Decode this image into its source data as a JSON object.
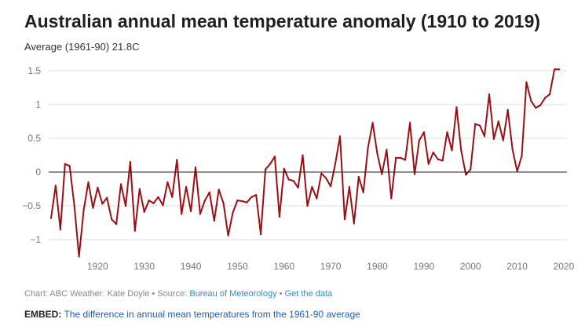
{
  "header": {
    "title": "Australian annual mean temperature anomaly (1910 to 2019)",
    "subtitle": "Average (1961-90) 21.8C"
  },
  "footer": {
    "credit": "Chart: ABC Weather: Kate Doyle",
    "separator1": " • Source: ",
    "source_link": "Bureau of Meteorology",
    "separator2": " • ",
    "data_link": "Get the data"
  },
  "embed": {
    "label": "EMBED:",
    "text": "The difference in annual mean temperatures from the 1961-90 average"
  },
  "colors": {
    "line": "#9b0f14",
    "grid": "#dcdcdc",
    "zero": "#222222",
    "tick": "#777777"
  },
  "chart_data": {
    "type": "line",
    "title": "Australian annual mean temperature anomaly (1910 to 2019)",
    "subtitle": "Average (1961-90) 21.8C",
    "xlabel": "",
    "ylabel": "",
    "xlim": [
      1910,
      2019
    ],
    "ylim": [
      -1.25,
      1.55
    ],
    "xticks": [
      1920,
      1930,
      1940,
      1950,
      1960,
      1970,
      1980,
      1990,
      2000,
      2010,
      2020
    ],
    "yticks": [
      -1,
      -0.5,
      0,
      0.5,
      1,
      1.5
    ],
    "ytick_labels": [
      "−1",
      "−0.5",
      "0",
      "0.5",
      "1",
      "1.5"
    ],
    "grid": true,
    "series": [
      {
        "name": "Annual mean temperature anomaly",
        "x": [
          1910,
          1911,
          1912,
          1913,
          1914,
          1915,
          1916,
          1917,
          1918,
          1919,
          1920,
          1921,
          1922,
          1923,
          1924,
          1925,
          1926,
          1927,
          1928,
          1929,
          1930,
          1931,
          1932,
          1933,
          1934,
          1935,
          1936,
          1937,
          1938,
          1939,
          1940,
          1941,
          1942,
          1943,
          1944,
          1945,
          1946,
          1947,
          1948,
          1949,
          1950,
          1951,
          1952,
          1953,
          1954,
          1955,
          1956,
          1957,
          1958,
          1959,
          1960,
          1961,
          1962,
          1963,
          1964,
          1965,
          1966,
          1967,
          1968,
          1969,
          1970,
          1971,
          1972,
          1973,
          1974,
          1975,
          1976,
          1977,
          1978,
          1979,
          1980,
          1981,
          1982,
          1983,
          1984,
          1985,
          1986,
          1987,
          1988,
          1989,
          1990,
          1991,
          1992,
          1993,
          1994,
          1995,
          1996,
          1997,
          1998,
          1999,
          2000,
          2001,
          2002,
          2003,
          2004,
          2005,
          2006,
          2007,
          2008,
          2009,
          2010,
          2011,
          2012,
          2013,
          2014,
          2015,
          2016,
          2017,
          2018,
          2019
        ],
        "values": [
          -0.68,
          -0.2,
          -0.85,
          0.12,
          0.09,
          -0.5,
          -1.25,
          -0.56,
          -0.15,
          -0.53,
          -0.23,
          -0.47,
          -0.38,
          -0.7,
          -0.77,
          -0.18,
          -0.5,
          0.15,
          -0.87,
          -0.25,
          -0.59,
          -0.42,
          -0.46,
          -0.37,
          -0.49,
          -0.15,
          -0.37,
          0.18,
          -0.62,
          -0.22,
          -0.58,
          0.07,
          -0.62,
          -0.42,
          -0.3,
          -0.72,
          -0.26,
          -0.46,
          -0.94,
          -0.6,
          -0.42,
          -0.43,
          -0.45,
          -0.37,
          -0.34,
          -0.92,
          0.04,
          0.12,
          0.23,
          -0.66,
          0.05,
          -0.11,
          -0.13,
          -0.23,
          0.25,
          -0.5,
          -0.22,
          -0.39,
          -0.02,
          -0.09,
          -0.21,
          0.13,
          0.53,
          -0.7,
          -0.22,
          -0.76,
          -0.07,
          -0.3,
          0.36,
          0.73,
          0.27,
          -0.03,
          0.33,
          -0.39,
          0.21,
          0.21,
          0.18,
          0.73,
          -0.03,
          0.47,
          0.59,
          0.12,
          0.29,
          0.19,
          0.17,
          0.59,
          0.32,
          0.96,
          0.32,
          -0.04,
          0.04,
          0.71,
          0.69,
          0.53,
          1.15,
          0.49,
          0.75,
          0.47,
          0.92,
          0.34,
          0.01,
          0.24,
          1.33,
          1.05,
          0.95,
          0.99,
          1.1,
          1.15,
          1.52,
          1.52
        ]
      }
    ]
  }
}
